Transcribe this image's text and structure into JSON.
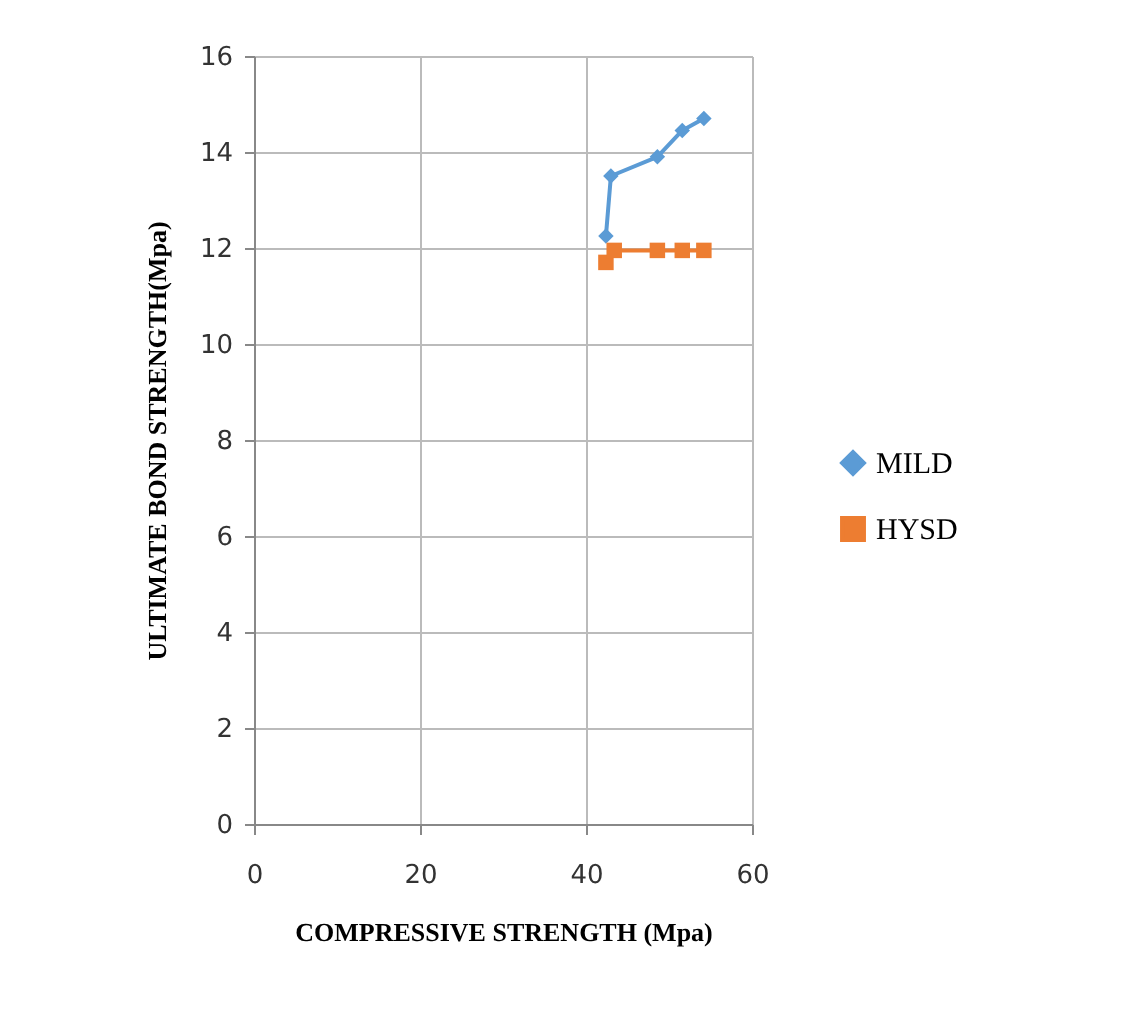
{
  "chart_data": {
    "type": "line",
    "xlabel": "COMPRESSIVE  STRENGTH  (Mpa)",
    "ylabel": "ULTIMATE BOND STRENGTH(Mpa)",
    "series": [
      {
        "name": "MILD",
        "color": "#5b9bd5",
        "marker": "diamond",
        "x": [
          42.4,
          43.0,
          48.6,
          51.6,
          54.2
        ],
        "values": [
          12.25,
          13.5,
          13.9,
          14.45,
          14.7
        ]
      },
      {
        "name": "HYSD",
        "color": "#ed7d31",
        "marker": "square",
        "x": [
          42.4,
          43.4,
          48.6,
          51.6,
          54.2
        ],
        "values": [
          11.7,
          11.95,
          11.95,
          11.95,
          11.95
        ]
      }
    ],
    "xlim": [
      0,
      60
    ],
    "xticks": [
      0,
      20,
      40,
      60
    ],
    "ylim": [
      0,
      16
    ],
    "yticks": [
      0,
      2,
      4,
      6,
      8,
      10,
      12,
      14,
      16
    ],
    "grid": true,
    "legend": "right"
  }
}
